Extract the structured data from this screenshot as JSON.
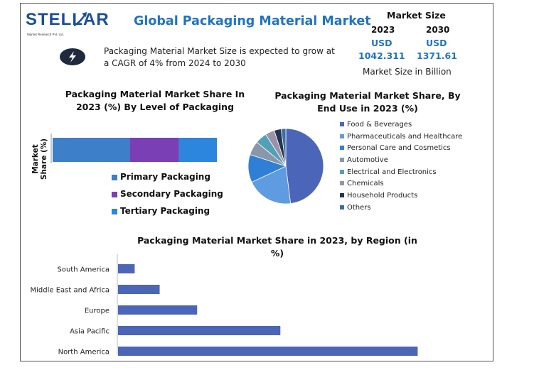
{
  "logo": {
    "name": "STELLAR",
    "tagline": "Market Research Pvt. Ltd."
  },
  "title": "Global Packaging Material Market",
  "market_size": {
    "title": "Market Size",
    "year1": "2023",
    "year2": "2030",
    "currency1": "USD",
    "currency2": "USD",
    "value1": "1042.311",
    "value2": "1371.61",
    "unit": "Market Size in Billion"
  },
  "description": "Packaging Material Market Size is expected to grow at a CAGR of 4% from 2024 to 2030",
  "icons": {
    "growth": "lightning-icon"
  },
  "colors": {
    "primary": "#3d7fc9",
    "secondary": "#7b3fb5",
    "tertiary": "#2c86dd",
    "region_bar": "#4b66b8"
  },
  "chart_data": [
    {
      "type": "bar",
      "orientation": "horizontal-stacked",
      "title_line1": "Packaging Material Market Share In",
      "title_line2": "2023 (%) By Level of Packaging",
      "ylabel": "Market Share (%)",
      "categories": [
        ""
      ],
      "series": [
        {
          "name": "Primary Packaging",
          "values": [
            47
          ],
          "color": "#3d7fc9"
        },
        {
          "name": "Secondary Packaging",
          "values": [
            30
          ],
          "color": "#7b3fb5"
        },
        {
          "name": "Tertiary Packaging",
          "values": [
            23
          ],
          "color": "#2c86dd"
        }
      ],
      "legend": "bottom"
    },
    {
      "type": "pie",
      "title_line1": "Packaging Material Market Share, By",
      "title_line2": "End Use in 2023 (%)",
      "labels": [
        "Food & Beverages",
        "Pharmaceuticals and Healthcare",
        "Personal Care and Cosmetics",
        "Automotive",
        "Electrical and Electronics",
        "Chemicals",
        "Household Products",
        "Others"
      ],
      "values": [
        48,
        20,
        12,
        6,
        5,
        4,
        3,
        2
      ],
      "colors": [
        "#4b66b8",
        "#5e9be0",
        "#2f7fd6",
        "#8a97aa",
        "#52a0b8",
        "#9a93a8",
        "#25344f",
        "#3b6fa0"
      ],
      "legend": "right"
    },
    {
      "type": "bar",
      "orientation": "horizontal",
      "title": "Packaging Material Market Share in 2023, by Region (in %)",
      "categories": [
        "South America",
        "Middle East and Africa",
        "Europe",
        "Asia Pacific",
        "North America"
      ],
      "values": [
        4,
        10,
        19,
        39,
        72
      ],
      "xlim": [
        0,
        75
      ],
      "color": "#4b66b8"
    }
  ]
}
